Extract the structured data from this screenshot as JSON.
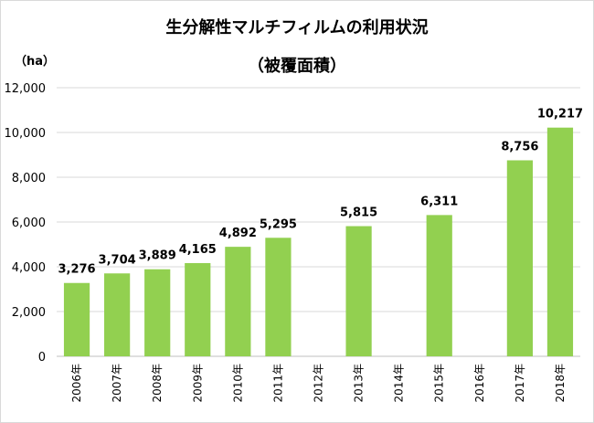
{
  "chart_data": {
    "type": "bar",
    "title": "生分解性マルチフィルムの利用状況",
    "subtitle": "（被覆面積）",
    "unit_label": "（ha）",
    "categories": [
      "2006年",
      "2007年",
      "2008年",
      "2009年",
      "2010年",
      "2011年",
      "2012年",
      "2013年",
      "2014年",
      "2015年",
      "2016年",
      "2017年",
      "2018年"
    ],
    "values": [
      3276,
      3704,
      3889,
      4165,
      4892,
      5295,
      null,
      5815,
      null,
      6311,
      null,
      8756,
      10217
    ],
    "data_labels": [
      "3,276",
      "3,704",
      "3,889",
      "4,165",
      "4,892",
      "5,295",
      "",
      "5,815",
      "",
      "6,311",
      "",
      "8,756",
      "10,217"
    ],
    "ylim": [
      0,
      12000
    ],
    "yticks": [
      0,
      2000,
      4000,
      6000,
      8000,
      10000,
      12000
    ],
    "ytick_labels": [
      "0",
      "2,000",
      "4,000",
      "6,000",
      "8,000",
      "10,000",
      "12,000"
    ],
    "grid": true,
    "colors": {
      "bar": "#92d050",
      "grid": "#d9d9d9",
      "axis": "#bfbfbf",
      "text": "#000000"
    }
  }
}
